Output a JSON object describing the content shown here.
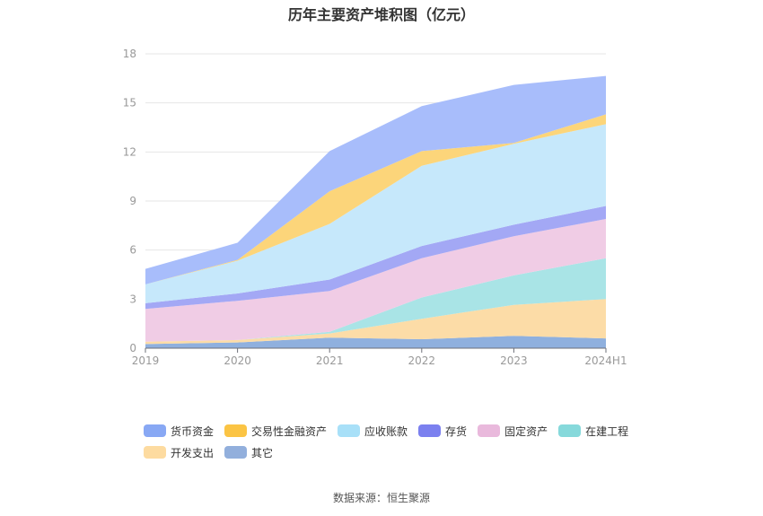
{
  "chart_data": {
    "type": "area",
    "stacked": true,
    "title": "历年主要资产堆积图（亿元）",
    "categories": [
      "2019",
      "2020",
      "2021",
      "2022",
      "2023",
      "2024H1"
    ],
    "ylim": [
      0,
      18
    ],
    "yticks": [
      0,
      3,
      6,
      9,
      12,
      15,
      18
    ],
    "grid": true,
    "legend_position": "bottom",
    "series": [
      {
        "name": "其它",
        "color": "#8fb0de",
        "values": [
          0.25,
          0.35,
          0.65,
          0.55,
          0.75,
          0.6
        ]
      },
      {
        "name": "开发支出",
        "color": "#fcdca7",
        "values": [
          0.15,
          0.15,
          0.25,
          1.25,
          1.9,
          2.4
        ]
      },
      {
        "name": "在建工程",
        "color": "#a9e4e6",
        "values": [
          0.0,
          0.0,
          0.1,
          1.3,
          1.8,
          2.5
        ]
      },
      {
        "name": "固定资产",
        "color": "#f0cce5",
        "values": [
          2.0,
          2.4,
          2.5,
          2.4,
          2.4,
          2.4
        ]
      },
      {
        "name": "存货",
        "color": "#a3a8f5",
        "values": [
          0.35,
          0.45,
          0.7,
          0.75,
          0.7,
          0.8
        ]
      },
      {
        "name": "应收账款",
        "color": "#c6e8fb",
        "values": [
          1.15,
          2.0,
          3.4,
          4.9,
          4.95,
          5.0
        ]
      },
      {
        "name": "交易性金融资产",
        "color": "#fcd57a",
        "values": [
          0.0,
          0.05,
          2.0,
          0.9,
          0.05,
          0.6
        ]
      },
      {
        "name": "货币资金",
        "color": "#a8bdfb",
        "values": [
          0.95,
          1.05,
          2.45,
          2.75,
          3.55,
          2.35
        ]
      }
    ],
    "legend": [
      {
        "name": "货币资金",
        "color": "#88a8f4"
      },
      {
        "name": "交易性金融资产",
        "color": "#fbc444"
      },
      {
        "name": "应收账款",
        "color": "#a8e0f8"
      },
      {
        "name": "存货",
        "color": "#7b80ef"
      },
      {
        "name": "固定资产",
        "color": "#e9b9dc"
      },
      {
        "name": "在建工程",
        "color": "#86d9db"
      },
      {
        "name": "开发支出",
        "color": "#fddba0"
      },
      {
        "name": "其它",
        "color": "#92afdc"
      }
    ]
  },
  "source": "数据来源：恒生聚源"
}
